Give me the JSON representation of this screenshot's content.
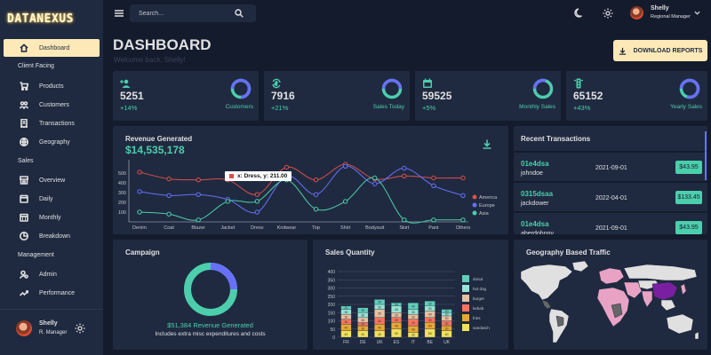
{
  "brand": "DATANEXUS",
  "sidebar": {
    "items": [
      {
        "label": "Dashboard",
        "icon": "home-icon"
      },
      {
        "label": "Products",
        "icon": "cart-icon"
      },
      {
        "label": "Customers",
        "icon": "people-icon"
      },
      {
        "label": "Transactions",
        "icon": "receipt-icon"
      },
      {
        "label": "Geography",
        "icon": "globe-icon"
      },
      {
        "label": "Overview",
        "icon": "storefront-icon"
      },
      {
        "label": "Daily",
        "icon": "calendar-today-icon"
      },
      {
        "label": "Monthly",
        "icon": "calendar-month-icon"
      },
      {
        "label": "Breakdown",
        "icon": "pie-chart-icon"
      },
      {
        "label": "Admin",
        "icon": "admin-icon"
      },
      {
        "label": "Performance",
        "icon": "trending-up-icon"
      }
    ],
    "sections": [
      "Client Facing",
      "Sales",
      "Management"
    ],
    "user": {
      "name": "Shelly",
      "role": "R. Manager"
    }
  },
  "topbar": {
    "search_placeholder": "Search...",
    "user": {
      "name": "Shelly",
      "role": "Regional Manager"
    }
  },
  "header": {
    "title": "DASHBOARD",
    "subtitle": "Welcome back, Shelly!",
    "download_label": "DOWNLOAD REPORTS"
  },
  "stats": [
    {
      "value": "5251",
      "change": "+14%",
      "label": "Customers",
      "icon": "person-add-icon",
      "ring": 0.75
    },
    {
      "value": "7916",
      "change": "+21%",
      "label": "Sales Today",
      "icon": "point-of-sale-icon",
      "ring": 0.5
    },
    {
      "value": "59525",
      "change": "+5%",
      "label": "Monthly Sales",
      "icon": "calendar-icon",
      "ring": 0.3
    },
    {
      "value": "65152",
      "change": "+43%",
      "label": "Yearly Sales",
      "icon": "traffic-icon",
      "ring": 0.8
    }
  ],
  "revenue": {
    "title": "Revenue Generated",
    "amount": "$14,535,178",
    "tooltip": "x: Dress, y: 211.00"
  },
  "transactions": {
    "title": "Recent Transactions",
    "rows": [
      {
        "id": "01e4dsa",
        "user": "johndoe",
        "date": "2021-09-01",
        "cost": "$43.95"
      },
      {
        "id": "0315dsaa",
        "user": "jackdower",
        "date": "2022-04-01",
        "cost": "$133.45"
      },
      {
        "id": "01e4dsa",
        "user": "aberdohnny",
        "date": "2021-09-01",
        "cost": "$43.95"
      }
    ]
  },
  "campaign": {
    "title": "Campaign",
    "revenue": "$51,384 Revenue Generated",
    "note": "Includes extra misc expenditures and costs",
    "ring": 0.25
  },
  "sales_quantity": {
    "title": "Sales Quantity"
  },
  "geography": {
    "title": "Geography Based Traffic"
  },
  "chart_data": [
    {
      "type": "line",
      "title": "Revenue Generated",
      "categories": [
        "Denim",
        "Coat",
        "Blazer",
        "Jacket",
        "Dress",
        "Knitwear",
        "Top",
        "Shirt",
        "Bodysuit",
        "Skirt",
        "Pant",
        "Others"
      ],
      "series": [
        {
          "name": "America",
          "color": "#db4f4a",
          "values": [
            510,
            440,
            430,
            430,
            280,
            560,
            430,
            590,
            440,
            470,
            450,
            450
          ]
        },
        {
          "name": "Europe",
          "color": "#6870fa",
          "values": [
            310,
            270,
            280,
            230,
            100,
            470,
            280,
            570,
            390,
            550,
            370,
            270
          ]
        },
        {
          "name": "Asia",
          "color": "#4cceac",
          "values": [
            100,
            80,
            20,
            210,
            211,
            430,
            130,
            210,
            450,
            20,
            20,
            20
          ]
        }
      ],
      "yticks": [
        "100",
        "200",
        "300",
        "400",
        "500"
      ],
      "ylim": [
        0,
        600
      ],
      "grid": false,
      "legend": "right"
    },
    {
      "type": "bar",
      "stacked": true,
      "title": "Sales Quantity",
      "categories": [
        "FR",
        "DE",
        "UK",
        "ES",
        "IT",
        "BE",
        "UK"
      ],
      "series": [
        {
          "name": "sandwich",
          "color": "#f1e15b",
          "values": [
            40,
            40,
            40,
            50,
            30,
            50,
            40
          ]
        },
        {
          "name": "fries",
          "color": "#e8a838",
          "values": [
            40,
            30,
            40,
            40,
            40,
            40,
            30
          ]
        },
        {
          "name": "kebab",
          "color": "#f47560",
          "values": [
            30,
            20,
            40,
            30,
            40,
            30,
            30
          ]
        },
        {
          "name": "burger",
          "color": "#e8c1a0",
          "values": [
            30,
            30,
            50,
            30,
            30,
            40,
            30
          ]
        },
        {
          "name": "hot dog",
          "color": "#97e3d5",
          "values": [
            30,
            30,
            30,
            40,
            30,
            30,
            20
          ]
        },
        {
          "name": "donut",
          "color": "#61cdbb",
          "values": [
            20,
            30,
            30,
            20,
            40,
            30,
            20
          ]
        }
      ],
      "legend_labels": [
        "donut",
        "hot dog",
        "burger",
        "kebab",
        "fries",
        "sandwich"
      ],
      "yticks": [
        "0",
        "50",
        "100",
        "150",
        "200",
        "250",
        "300",
        "350",
        "400"
      ],
      "ylim": [
        0,
        400
      ],
      "grid": true
    }
  ]
}
